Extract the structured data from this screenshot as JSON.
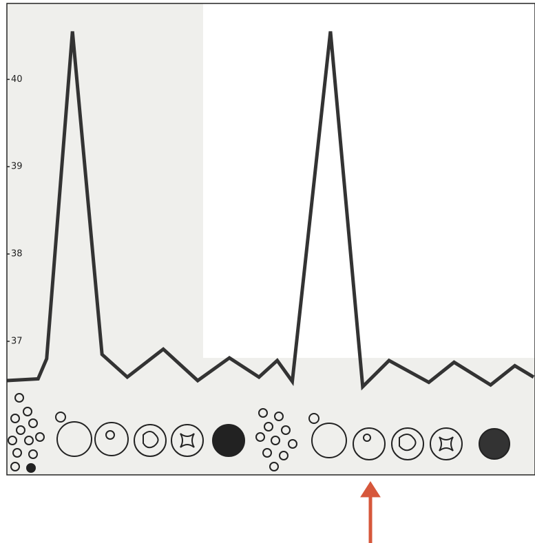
{
  "chart_data": {
    "type": "line",
    "x": [
      0,
      5.8,
      7.4,
      12.2,
      17.7,
      22.4,
      29.1,
      35.5,
      41.4,
      46.9,
      50.3,
      53.1,
      60.2,
      66.2,
      71.1,
      78.5,
      83.2,
      90.0,
      94.5,
      98.0
    ],
    "values": [
      36.55,
      36.57,
      36.8,
      40.55,
      36.85,
      36.59,
      36.91,
      36.55,
      36.81,
      36.59,
      36.78,
      36.54,
      40.55,
      36.48,
      36.78,
      36.53,
      36.76,
      36.5,
      36.72,
      36.59
    ],
    "color": "#333333",
    "xlim": [
      0,
      98
    ],
    "ylim": [
      35.47,
      40.87
    ],
    "yticks": [
      37,
      38,
      39,
      40
    ]
  }
}
